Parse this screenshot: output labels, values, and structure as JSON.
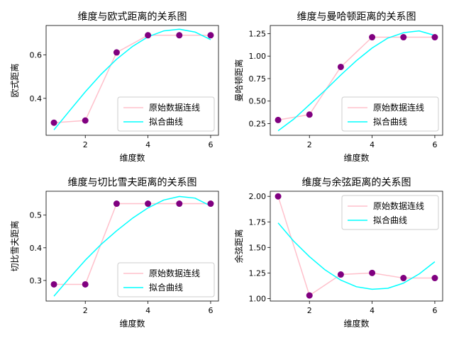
{
  "chart_data": [
    {
      "type": "line",
      "title": "维度与欧式距离的关系图",
      "xlabel": "维度数",
      "ylabel": "欧式距离",
      "xlim": [
        0.75,
        6.25
      ],
      "ylim": [
        0.23,
        0.735
      ],
      "xticks": [
        2,
        4,
        6
      ],
      "yticks": [
        0.4,
        0.6
      ],
      "ytick_labels": [
        "0.4",
        "0.6"
      ],
      "legend_position": "lower-right",
      "x": [
        1,
        2,
        3,
        4,
        5,
        6
      ],
      "series": [
        {
          "name": "原始数据连线",
          "kind": "raw",
          "color": "#ffc0cb",
          "values": [
            0.288,
            0.298,
            0.611,
            0.69,
            0.69,
            0.69
          ]
        },
        {
          "name": "拟合曲线",
          "kind": "fit",
          "color": "#00ffff",
          "fit_x": [
            1,
            1.5,
            2,
            2.5,
            3,
            3.5,
            4,
            4.5,
            5,
            5.5,
            6
          ],
          "fit_values": [
            0.255,
            0.343,
            0.43,
            0.51,
            0.58,
            0.638,
            0.683,
            0.71,
            0.718,
            0.705,
            0.67
          ]
        }
      ],
      "scatter_color": "#800080"
    },
    {
      "type": "line",
      "title": "维度与曼哈顿距离的关系图",
      "xlabel": "维度数",
      "ylabel": "曼哈顿距离",
      "xlim": [
        0.75,
        6.25
      ],
      "ylim": [
        0.12,
        1.34
      ],
      "xticks": [
        2,
        4,
        6
      ],
      "yticks": [
        0.25,
        0.5,
        0.75,
        1.0,
        1.25
      ],
      "ytick_labels": [
        "0.25",
        "0.50",
        "0.75",
        "1.00",
        "1.25"
      ],
      "legend_position": "lower-right",
      "x": [
        1,
        2,
        3,
        4,
        5,
        6
      ],
      "series": [
        {
          "name": "原始数据连线",
          "kind": "raw",
          "color": "#ffc0cb",
          "values": [
            0.29,
            0.35,
            0.88,
            1.21,
            1.21,
            1.21
          ]
        },
        {
          "name": "拟合曲线",
          "kind": "fit",
          "color": "#00ffff",
          "fit_x": [
            1,
            1.5,
            2,
            2.5,
            3,
            3.5,
            4,
            4.5,
            5,
            5.5,
            6
          ],
          "fit_values": [
            0.17,
            0.3,
            0.46,
            0.62,
            0.79,
            0.95,
            1.09,
            1.2,
            1.26,
            1.28,
            1.23
          ]
        }
      ],
      "scatter_color": "#800080"
    },
    {
      "type": "line",
      "title": "维度与切比雪夫距离的关系图",
      "xlabel": "维度数",
      "ylabel": "切比雪夫距离",
      "xlim": [
        0.75,
        6.25
      ],
      "ylim": [
        0.237,
        0.573
      ],
      "xticks": [
        2,
        4,
        6
      ],
      "yticks": [
        0.3,
        0.4,
        0.5
      ],
      "ytick_labels": [
        "0.3",
        "0.4",
        "0.5"
      ],
      "legend_position": "lower-right",
      "x": [
        1,
        2,
        3,
        4,
        5,
        6
      ],
      "series": [
        {
          "name": "原始数据连线",
          "kind": "raw",
          "color": "#ffc0cb",
          "values": [
            0.288,
            0.288,
            0.535,
            0.535,
            0.535,
            0.535
          ]
        },
        {
          "name": "拟合曲线",
          "kind": "fit",
          "color": "#00ffff",
          "fit_x": [
            1,
            1.5,
            2,
            2.5,
            3,
            3.5,
            4,
            4.5,
            5,
            5.5,
            6
          ],
          "fit_values": [
            0.252,
            0.308,
            0.362,
            0.41,
            0.452,
            0.49,
            0.522,
            0.546,
            0.557,
            0.552,
            0.528
          ]
        }
      ],
      "scatter_color": "#800080"
    },
    {
      "type": "line",
      "title": "维度与余弦距离的关系图",
      "xlabel": "维度数",
      "ylabel": "余弦距离",
      "xlim": [
        0.75,
        6.25
      ],
      "ylim": [
        0.975,
        2.05
      ],
      "xticks": [
        2,
        4,
        6
      ],
      "yticks": [
        1.0,
        1.25,
        1.5,
        1.75,
        2.0
      ],
      "ytick_labels": [
        "1.00",
        "1.25",
        "1.50",
        "1.75",
        "2.00"
      ],
      "legend_position": "upper-right",
      "x": [
        1,
        2,
        3,
        4,
        5,
        6
      ],
      "series": [
        {
          "name": "原始数据连线",
          "kind": "raw",
          "color": "#ffc0cb",
          "values": [
            2.0,
            1.03,
            1.235,
            1.25,
            1.2,
            1.2
          ]
        },
        {
          "name": "拟合曲线",
          "kind": "fit",
          "color": "#00ffff",
          "fit_x": [
            1,
            1.5,
            2,
            2.5,
            3,
            3.5,
            4,
            4.5,
            5,
            5.5,
            6
          ],
          "fit_values": [
            1.74,
            1.56,
            1.41,
            1.28,
            1.18,
            1.115,
            1.09,
            1.1,
            1.15,
            1.24,
            1.36
          ]
        }
      ],
      "scatter_color": "#800080"
    }
  ]
}
